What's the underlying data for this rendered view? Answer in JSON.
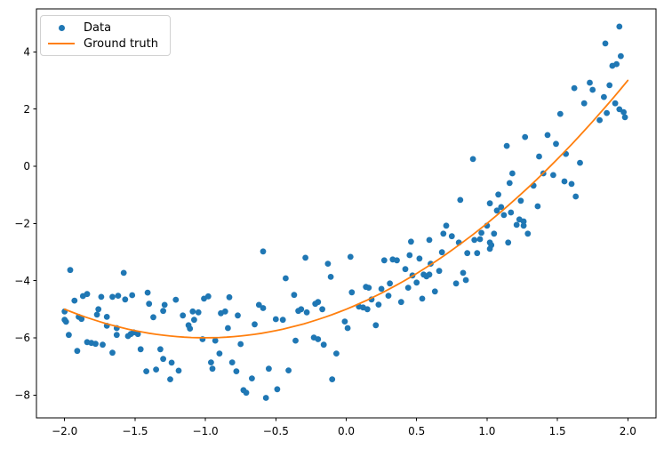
{
  "legend": {
    "items": [
      {
        "label": "Data",
        "type": "marker",
        "color": "#1f77b4"
      },
      {
        "label": "Ground truth",
        "type": "line",
        "color": "#ff7f0e"
      }
    ],
    "position": "upper left"
  },
  "colors": {
    "data_points": "#1f77b4",
    "ground_truth_line": "#ff7f0e",
    "axis": "#000000",
    "background": "#ffffff",
    "legend_border": "#d1d1d1"
  },
  "chart_data": {
    "type": "scatter",
    "title": "",
    "xlabel": "",
    "ylabel": "",
    "grid": false,
    "legend_position": "upper left",
    "xlim": [
      -2.2,
      2.2
    ],
    "ylim": [
      -8.8,
      5.5
    ],
    "x_ticks": [
      -2.0,
      -1.5,
      -1.0,
      -0.5,
      0.0,
      0.5,
      1.0,
      1.5,
      2.0
    ],
    "x_tick_labels": [
      "−2.0",
      "−1.5",
      "−1.0",
      "−0.5",
      "0.0",
      "0.5",
      "1.0",
      "1.5",
      "2.0"
    ],
    "y_ticks": [
      4,
      2,
      0,
      -2,
      -4,
      -6,
      -8
    ],
    "y_tick_labels": [
      "4",
      "2",
      "0",
      "−2",
      "−4",
      "−6",
      "−8"
    ],
    "axis_color": "#000000",
    "series": [
      {
        "name": "Data",
        "type": "scatter",
        "color": "#1f77b4",
        "marker": "circle",
        "points": [
          [
            -2.0,
            -5.08
          ],
          [
            -2.0,
            -5.37
          ],
          [
            -1.99,
            -5.44
          ],
          [
            -1.97,
            -5.9
          ],
          [
            -1.96,
            -3.63
          ],
          [
            -1.93,
            -4.7
          ],
          [
            -1.91,
            -6.46
          ],
          [
            -1.9,
            -5.27
          ],
          [
            -1.88,
            -5.34
          ],
          [
            -1.87,
            -4.54
          ],
          [
            -1.84,
            -4.47
          ],
          [
            -1.84,
            -6.15
          ],
          [
            -1.81,
            -6.18
          ],
          [
            -1.78,
            -6.21
          ],
          [
            -1.77,
            -5.19
          ],
          [
            -1.76,
            -5.0
          ],
          [
            -1.74,
            -4.57
          ],
          [
            -1.73,
            -6.24
          ],
          [
            -1.7,
            -5.27
          ],
          [
            -1.7,
            -5.58
          ],
          [
            -1.66,
            -4.57
          ],
          [
            -1.66,
            -6.52
          ],
          [
            -1.63,
            -5.66
          ],
          [
            -1.63,
            -5.9
          ],
          [
            -1.62,
            -4.53
          ],
          [
            -1.58,
            -3.73
          ],
          [
            -1.57,
            -4.66
          ],
          [
            -1.55,
            -5.94
          ],
          [
            -1.53,
            -5.87
          ],
          [
            -1.52,
            -4.51
          ],
          [
            -1.51,
            -5.81
          ],
          [
            -1.48,
            -5.87
          ],
          [
            -1.46,
            -6.4
          ],
          [
            -1.42,
            -7.17
          ],
          [
            -1.41,
            -4.42
          ],
          [
            -1.4,
            -4.81
          ],
          [
            -1.37,
            -5.28
          ],
          [
            -1.35,
            -7.11
          ],
          [
            -1.32,
            -6.4
          ],
          [
            -1.3,
            -5.06
          ],
          [
            -1.3,
            -6.74
          ],
          [
            -1.29,
            -4.85
          ],
          [
            -1.25,
            -7.45
          ],
          [
            -1.24,
            -6.87
          ],
          [
            -1.21,
            -4.67
          ],
          [
            -1.19,
            -7.15
          ],
          [
            -1.16,
            -5.22
          ],
          [
            -1.12,
            -5.56
          ],
          [
            -1.11,
            -5.68
          ],
          [
            -1.09,
            -5.08
          ],
          [
            -1.08,
            -5.37
          ],
          [
            -1.05,
            -5.11
          ],
          [
            -1.02,
            -6.05
          ],
          [
            -1.01,
            -4.63
          ],
          [
            -0.98,
            -4.55
          ],
          [
            -0.96,
            -6.86
          ],
          [
            -0.95,
            -7.08
          ],
          [
            -0.93,
            -6.1
          ],
          [
            -0.9,
            -6.55
          ],
          [
            -0.89,
            -5.14
          ],
          [
            -0.86,
            -5.08
          ],
          [
            -0.84,
            -5.66
          ],
          [
            -0.83,
            -4.58
          ],
          [
            -0.81,
            -6.86
          ],
          [
            -0.78,
            -7.17
          ],
          [
            -0.77,
            -5.22
          ],
          [
            -0.75,
            -6.22
          ],
          [
            -0.73,
            -7.83
          ],
          [
            -0.71,
            -7.92
          ],
          [
            -0.67,
            -7.42
          ],
          [
            -0.65,
            -5.53
          ],
          [
            -0.62,
            -4.85
          ],
          [
            -0.59,
            -2.98
          ],
          [
            -0.59,
            -4.96
          ],
          [
            -0.57,
            -8.1
          ],
          [
            -0.55,
            -7.08
          ],
          [
            -0.5,
            -5.35
          ],
          [
            -0.49,
            -7.8
          ],
          [
            -0.45,
            -5.37
          ],
          [
            -0.43,
            -3.92
          ],
          [
            -0.41,
            -7.14
          ],
          [
            -0.37,
            -4.5
          ],
          [
            -0.36,
            -6.1
          ],
          [
            -0.34,
            -5.06
          ],
          [
            -0.32,
            -5.0
          ],
          [
            -0.29,
            -3.2
          ],
          [
            -0.28,
            -5.11
          ],
          [
            -0.23,
            -5.99
          ],
          [
            -0.22,
            -4.81
          ],
          [
            -0.2,
            -4.75
          ],
          [
            -0.2,
            -6.05
          ],
          [
            -0.17,
            -5.0
          ],
          [
            -0.16,
            -6.24
          ],
          [
            -0.13,
            -3.41
          ],
          [
            -0.11,
            -3.87
          ],
          [
            -0.1,
            -7.45
          ],
          [
            -0.07,
            -6.55
          ],
          [
            -0.01,
            -5.43
          ],
          [
            0.01,
            -5.66
          ],
          [
            0.03,
            -3.17
          ],
          [
            0.04,
            -4.41
          ],
          [
            0.09,
            -4.91
          ],
          [
            0.12,
            -4.94
          ],
          [
            0.14,
            -4.22
          ],
          [
            0.15,
            -5.0
          ],
          [
            0.16,
            -4.25
          ],
          [
            0.18,
            -4.66
          ],
          [
            0.21,
            -5.56
          ],
          [
            0.23,
            -4.84
          ],
          [
            0.25,
            -4.29
          ],
          [
            0.27,
            -3.29
          ],
          [
            0.3,
            -4.53
          ],
          [
            0.31,
            -4.1
          ],
          [
            0.33,
            -3.26
          ],
          [
            0.36,
            -3.29
          ],
          [
            0.39,
            -4.75
          ],
          [
            0.42,
            -3.6
          ],
          [
            0.44,
            -4.25
          ],
          [
            0.45,
            -3.11
          ],
          [
            0.46,
            -2.64
          ],
          [
            0.47,
            -3.82
          ],
          [
            0.5,
            -4.07
          ],
          [
            0.52,
            -3.23
          ],
          [
            0.54,
            -4.63
          ],
          [
            0.55,
            -3.79
          ],
          [
            0.57,
            -3.85
          ],
          [
            0.59,
            -3.79
          ],
          [
            0.59,
            -2.58
          ],
          [
            0.6,
            -3.41
          ],
          [
            0.63,
            -4.38
          ],
          [
            0.66,
            -3.66
          ],
          [
            0.68,
            -3.01
          ],
          [
            0.69,
            -2.36
          ],
          [
            0.71,
            -2.08
          ],
          [
            0.75,
            -2.45
          ],
          [
            0.78,
            -4.1
          ],
          [
            0.8,
            -2.67
          ],
          [
            0.81,
            -1.18
          ],
          [
            0.83,
            -3.73
          ],
          [
            0.85,
            -3.98
          ],
          [
            0.86,
            -3.04
          ],
          [
            0.9,
            0.25
          ],
          [
            0.91,
            -2.58
          ],
          [
            0.93,
            -3.04
          ],
          [
            0.95,
            -2.55
          ],
          [
            0.96,
            -2.33
          ],
          [
            1.0,
            -2.08
          ],
          [
            1.02,
            -2.67
          ],
          [
            1.02,
            -2.89
          ],
          [
            1.02,
            -1.3
          ],
          [
            1.03,
            -2.76
          ],
          [
            1.05,
            -2.36
          ],
          [
            1.07,
            -1.55
          ],
          [
            1.08,
            -0.99
          ],
          [
            1.1,
            -1.43
          ],
          [
            1.12,
            -1.71
          ],
          [
            1.14,
            0.71
          ],
          [
            1.15,
            -2.67
          ],
          [
            1.16,
            -0.59
          ],
          [
            1.17,
            -1.62
          ],
          [
            1.18,
            -0.25
          ],
          [
            1.21,
            -2.05
          ],
          [
            1.23,
            -1.86
          ],
          [
            1.24,
            -1.21
          ],
          [
            1.26,
            -1.93
          ],
          [
            1.26,
            -2.08
          ],
          [
            1.27,
            1.02
          ],
          [
            1.29,
            -2.36
          ],
          [
            1.33,
            -0.68
          ],
          [
            1.36,
            -1.4
          ],
          [
            1.37,
            0.34
          ],
          [
            1.4,
            -0.25
          ],
          [
            1.43,
            1.09
          ],
          [
            1.47,
            -0.31
          ],
          [
            1.49,
            0.78
          ],
          [
            1.52,
            1.83
          ],
          [
            1.55,
            -0.53
          ],
          [
            1.56,
            0.43
          ],
          [
            1.6,
            -0.62
          ],
          [
            1.62,
            2.73
          ],
          [
            1.63,
            -1.06
          ],
          [
            1.66,
            0.12
          ],
          [
            1.69,
            2.2
          ],
          [
            1.73,
            2.92
          ],
          [
            1.75,
            2.67
          ],
          [
            1.8,
            1.61
          ],
          [
            1.83,
            2.42
          ],
          [
            1.84,
            4.29
          ],
          [
            1.85,
            1.86
          ],
          [
            1.87,
            2.83
          ],
          [
            1.89,
            3.51
          ],
          [
            1.91,
            2.2
          ],
          [
            1.92,
            3.57
          ],
          [
            1.94,
            4.88
          ],
          [
            1.94,
            1.99
          ],
          [
            1.95,
            3.85
          ],
          [
            1.97,
            1.89
          ],
          [
            1.98,
            1.71
          ]
        ]
      },
      {
        "name": "Ground truth",
        "type": "line",
        "color": "#ff7f0e",
        "curve": "quadratic",
        "coefficients": [
          1,
          2,
          -5
        ],
        "x_range": [
          -2,
          2
        ]
      }
    ]
  }
}
